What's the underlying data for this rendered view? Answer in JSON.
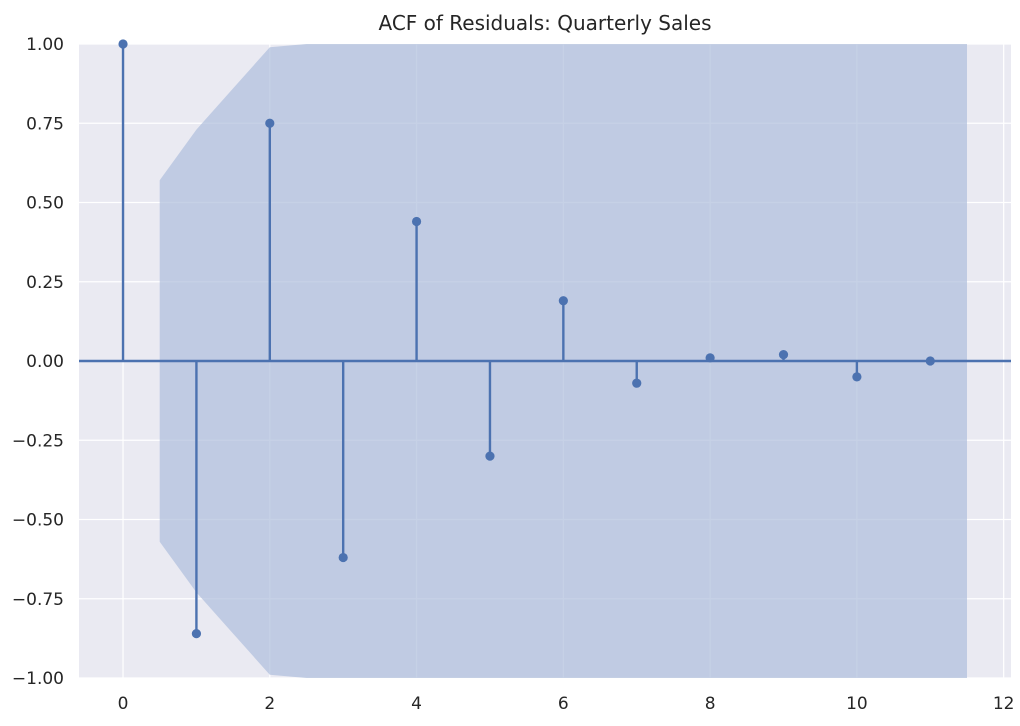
{
  "chart_data": {
    "type": "stem",
    "title": "ACF of Residuals: Quarterly Sales",
    "xlabel": "",
    "ylabel": "",
    "xlim": [
      -0.6,
      12.1
    ],
    "ylim": [
      -1.0,
      1.0
    ],
    "xticks": [
      0,
      2,
      4,
      6,
      8,
      10,
      12
    ],
    "xtick_labels": [
      "0",
      "2",
      "4",
      "6",
      "8",
      "10",
      "12"
    ],
    "yticks": [
      1.0,
      0.75,
      0.5,
      0.25,
      0.0,
      -0.25,
      -0.5,
      -0.75,
      -1.0
    ],
    "ytick_labels": [
      "1.00",
      "0.75",
      "0.50",
      "0.25",
      "0.00",
      "−0.25",
      "−0.50",
      "−0.75",
      "−1.00"
    ],
    "lags": [
      0,
      1,
      2,
      3,
      4,
      5,
      6,
      7,
      8,
      9,
      10,
      11
    ],
    "values": [
      1.0,
      -0.86,
      0.75,
      -0.62,
      0.44,
      -0.3,
      0.19,
      -0.07,
      0.01,
      0.02,
      -0.05,
      0.0
    ],
    "confidence_band": {
      "x": [
        0.5,
        1,
        1.5,
        2,
        2.5,
        3,
        4,
        5,
        6,
        7,
        8,
        9,
        10,
        11,
        11.5
      ],
      "upper": [
        0.57,
        0.73,
        0.86,
        0.99,
        1.1,
        1.2,
        1.28,
        1.32,
        1.34,
        1.35,
        1.36,
        1.36,
        1.37,
        1.37,
        1.37
      ],
      "lower": [
        -0.57,
        -0.73,
        -0.86,
        -0.99,
        -1.1,
        -1.2,
        -1.28,
        -1.32,
        -1.34,
        -1.35,
        -1.36,
        -1.36,
        -1.37,
        -1.37,
        -1.37
      ]
    },
    "grid": true,
    "colors": {
      "background": "#eaeaf2",
      "grid": "#ffffff",
      "series": "#4c72b0",
      "band": "#b0bfdc"
    }
  }
}
